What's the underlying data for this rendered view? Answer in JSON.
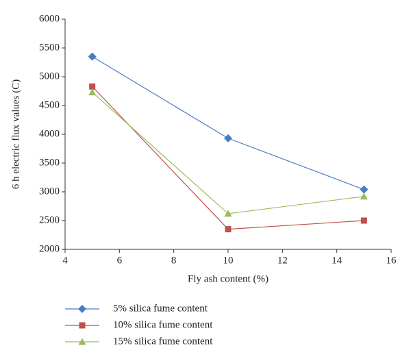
{
  "chart_data": {
    "type": "line",
    "x_label": "Fly ash content (%)",
    "y_label": "6 h electric flux values (C)",
    "x": [
      5,
      10,
      15
    ],
    "series": [
      {
        "name": "5% silica fume content",
        "color": "#4a7cc4",
        "marker": "diamond",
        "values": [
          5350,
          3930,
          3040
        ]
      },
      {
        "name": "10% silica fume content",
        "color": "#c0504d",
        "marker": "square",
        "values": [
          4830,
          2350,
          2500
        ]
      },
      {
        "name": "15% silica fume content",
        "color": "#9bbb59",
        "marker": "triangle",
        "values": [
          4730,
          2620,
          2920
        ]
      }
    ],
    "xlim": [
      4,
      16
    ],
    "xticks": [
      4,
      6,
      8,
      10,
      12,
      14,
      16
    ],
    "ylim": [
      2000,
      6000
    ],
    "yticks": [
      2000,
      2500,
      3000,
      3500,
      4000,
      4500,
      5000,
      5500,
      6000
    ],
    "grid": false,
    "legend": "bottom"
  }
}
